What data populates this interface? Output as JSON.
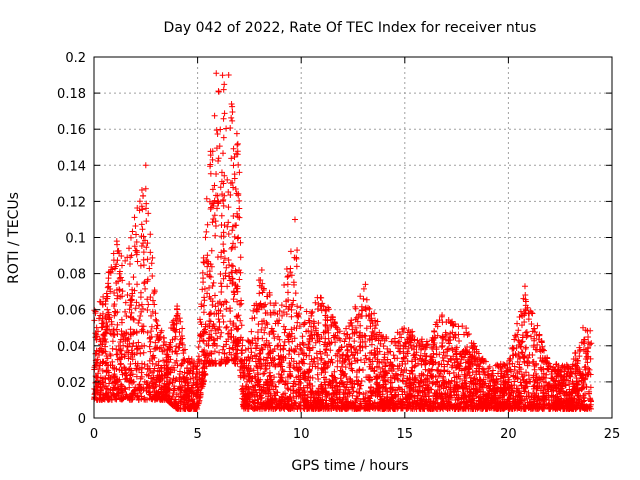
{
  "chart_data": {
    "type": "scatter",
    "title": "Day 042 of 2022, Rate Of TEC Index for receiver ntus",
    "xlabel": "GPS time / hours",
    "ylabel": "ROTI / TECUs",
    "xlim": [
      0,
      25
    ],
    "ylim": [
      0,
      0.2
    ],
    "x_ticks": [
      "0",
      "5",
      "10",
      "15",
      "20",
      "25"
    ],
    "y_ticks": [
      "0",
      "0.02",
      "0.04",
      "0.06",
      "0.08",
      "0.1",
      "0.12",
      "0.14",
      "0.16",
      "0.18",
      "0.2"
    ],
    "grid": true,
    "marker": "+",
    "color": "#ff0000",
    "series": [
      {
        "values_envelope": [
          {
            "x": 0.0,
            "y_low": 0.01,
            "y_high": 0.06
          },
          {
            "x": 0.5,
            "y_low": 0.01,
            "y_high": 0.07
          },
          {
            "x": 1.0,
            "y_low": 0.01,
            "y_high": 0.098
          },
          {
            "x": 1.5,
            "y_low": 0.01,
            "y_high": 0.09
          },
          {
            "x": 2.0,
            "y_low": 0.01,
            "y_high": 0.115
          },
          {
            "x": 2.5,
            "y_low": 0.01,
            "y_high": 0.14
          },
          {
            "x": 3.0,
            "y_low": 0.01,
            "y_high": 0.06
          },
          {
            "x": 3.5,
            "y_low": 0.01,
            "y_high": 0.04
          },
          {
            "x": 4.0,
            "y_low": 0.005,
            "y_high": 0.065
          },
          {
            "x": 4.5,
            "y_low": 0.005,
            "y_high": 0.035
          },
          {
            "x": 5.0,
            "y_low": 0.005,
            "y_high": 0.03
          },
          {
            "x": 5.5,
            "y_low": 0.03,
            "y_high": 0.14
          },
          {
            "x": 5.9,
            "y_low": 0.03,
            "y_high": 0.19
          },
          {
            "x": 6.5,
            "y_low": 0.03,
            "y_high": 0.19
          },
          {
            "x": 7.0,
            "y_low": 0.03,
            "y_high": 0.15
          },
          {
            "x": 7.2,
            "y_low": 0.005,
            "y_high": 0.03
          },
          {
            "x": 8.0,
            "y_low": 0.005,
            "y_high": 0.08
          },
          {
            "x": 9.0,
            "y_low": 0.005,
            "y_high": 0.06
          },
          {
            "x": 9.6,
            "y_low": 0.005,
            "y_high": 0.11
          },
          {
            "x": 10.0,
            "y_low": 0.005,
            "y_high": 0.06
          },
          {
            "x": 11.0,
            "y_low": 0.005,
            "y_high": 0.07
          },
          {
            "x": 12.0,
            "y_low": 0.005,
            "y_high": 0.045
          },
          {
            "x": 13.0,
            "y_low": 0.005,
            "y_high": 0.073
          },
          {
            "x": 14.0,
            "y_low": 0.005,
            "y_high": 0.045
          },
          {
            "x": 15.0,
            "y_low": 0.005,
            "y_high": 0.05
          },
          {
            "x": 16.0,
            "y_low": 0.005,
            "y_high": 0.045
          },
          {
            "x": 16.8,
            "y_low": 0.005,
            "y_high": 0.057
          },
          {
            "x": 18.0,
            "y_low": 0.005,
            "y_high": 0.05
          },
          {
            "x": 19.0,
            "y_low": 0.005,
            "y_high": 0.03
          },
          {
            "x": 20.0,
            "y_low": 0.005,
            "y_high": 0.03
          },
          {
            "x": 20.8,
            "y_low": 0.005,
            "y_high": 0.073
          },
          {
            "x": 22.0,
            "y_low": 0.005,
            "y_high": 0.03
          },
          {
            "x": 23.0,
            "y_low": 0.005,
            "y_high": 0.03
          },
          {
            "x": 23.7,
            "y_low": 0.005,
            "y_high": 0.05
          },
          {
            "x": 24.0,
            "y_low": 0.005,
            "y_high": 0.05
          }
        ],
        "outliers": [
          {
            "x": 2.5,
            "y": 0.14
          },
          {
            "x": 2.5,
            "y": 0.127
          },
          {
            "x": 1.1,
            "y": 0.098
          },
          {
            "x": 2.2,
            "y": 0.115
          },
          {
            "x": 5.9,
            "y": 0.191
          },
          {
            "x": 6.5,
            "y": 0.19
          },
          {
            "x": 9.7,
            "y": 0.11
          },
          {
            "x": 9.8,
            "y": 0.093
          },
          {
            "x": 8.1,
            "y": 0.082
          },
          {
            "x": 13.1,
            "y": 0.074
          },
          {
            "x": 20.8,
            "y": 0.073
          },
          {
            "x": 16.8,
            "y": 0.057
          },
          {
            "x": 23.6,
            "y": 0.05
          }
        ]
      }
    ]
  }
}
